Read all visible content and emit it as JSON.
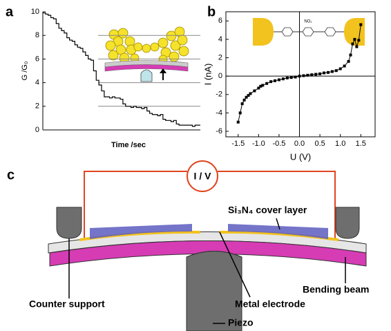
{
  "panel_labels": [
    "a",
    "b",
    "c"
  ],
  "chart_data": [
    {
      "type": "step",
      "xlabel": "Time /sec",
      "ylabel": "G /G₀",
      "color": "#000000",
      "values": [
        9.9,
        9.8,
        9.7,
        9.5,
        9.4,
        9.0,
        8.6,
        8.4,
        8.2,
        7.8,
        7.6,
        7.5,
        7.2,
        7.0,
        6.9,
        6.6,
        6.3,
        6.0,
        5.9,
        5.0,
        4.2,
        3.8,
        3.3,
        2.8,
        2.8,
        2.7,
        2.8,
        2.7,
        2.7,
        2.6,
        2.2,
        2.0,
        2.0,
        1.9,
        2.0,
        1.9,
        1.9,
        1.8,
        1.9,
        1.6,
        1.4,
        1.3,
        1.3,
        1.2,
        1.3,
        0.9,
        0.8,
        0.8,
        0.7,
        0.8,
        0.5,
        0.4,
        0.4,
        0.4,
        0.4,
        0.4,
        0.3,
        0.4,
        0.4,
        0.4
      ],
      "ylim": [
        0,
        10
      ],
      "yticks": [
        0,
        2,
        4,
        6,
        8,
        10
      ],
      "grid": true
    },
    {
      "type": "line",
      "xlabel": "U (V)",
      "ylabel": "I (nA)",
      "annotation": "NO₂",
      "color": "#000000",
      "x": [
        -1.5,
        -1.45,
        -1.4,
        -1.35,
        -1.3,
        -1.25,
        -1.2,
        -1.1,
        -1.0,
        -0.95,
        -0.9,
        -0.8,
        -0.7,
        -0.6,
        -0.5,
        -0.4,
        -0.3,
        -0.2,
        -0.1,
        0,
        0.1,
        0.2,
        0.3,
        0.4,
        0.5,
        0.6,
        0.7,
        0.8,
        0.9,
        1.0,
        1.1,
        1.2,
        1.25,
        1.3,
        1.35,
        1.4,
        1.45,
        1.5
      ],
      "values": [
        -5.0,
        -4.0,
        -3.0,
        -2.6,
        -2.3,
        -2.1,
        -1.9,
        -1.6,
        -1.3,
        -1.1,
        -1.0,
        -0.8,
        -0.6,
        -0.5,
        -0.4,
        -0.3,
        -0.2,
        -0.15,
        -0.1,
        0,
        0.05,
        0.1,
        0.15,
        0.2,
        0.25,
        0.35,
        0.4,
        0.5,
        0.6,
        0.8,
        1.1,
        1.6,
        2.3,
        3.5,
        4.0,
        3.2,
        3.9,
        5.6
      ],
      "xlim": [
        -1.8,
        1.85
      ],
      "ylim": [
        -6.6,
        7
      ],
      "xticks": [
        -1.5,
        {
          "value": -1.0,
          "label": "-1.0"
        },
        -0.5,
        {
          "value": 0,
          "label": "0.0"
        },
        0.5,
        {
          "value": 1.0,
          "label": "1.0"
        },
        1.5
      ],
      "yticks": [
        -6,
        -4,
        -2,
        0,
        2,
        4,
        6
      ]
    }
  ],
  "diagram": {
    "meter": "I / V",
    "cover_layer": "Si₃N₄ cover layer",
    "counter_support": "Counter support",
    "bending_beam": "Bending beam",
    "metal_electrode": "Metal electrode",
    "piezo": "Piezo"
  }
}
